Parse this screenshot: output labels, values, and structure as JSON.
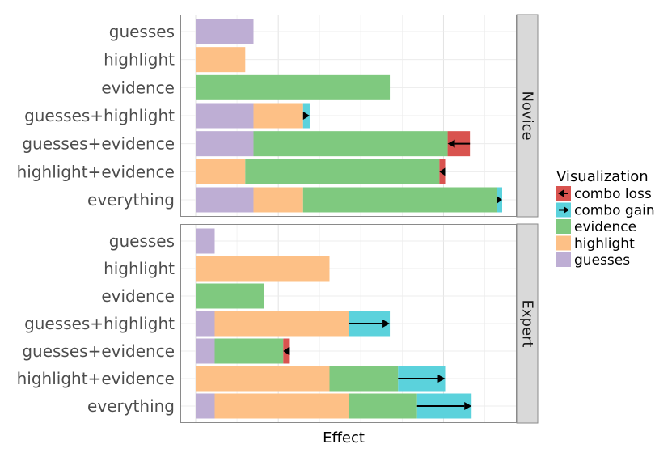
{
  "chart_data": {
    "type": "bar",
    "orientation": "horizontal",
    "stacked": true,
    "xlabel": "Effect",
    "ylabel": "",
    "x_tick_labels_shown": false,
    "grid": true,
    "xlim": [
      0,
      4.2
    ],
    "categories": [
      "guesses",
      "highlight",
      "evidence",
      "guesses+highlight",
      "guesses+evidence",
      "highlight+evidence",
      "everything"
    ],
    "facets": [
      {
        "label": "Novice",
        "rows": [
          {
            "category": "guesses",
            "segments": [
              {
                "fill": "guesses",
                "value": 0.7
              }
            ]
          },
          {
            "category": "highlight",
            "segments": [
              {
                "fill": "highlight",
                "value": 0.6
              }
            ]
          },
          {
            "category": "evidence",
            "segments": [
              {
                "fill": "evidence",
                "value": 2.35
              }
            ]
          },
          {
            "category": "guesses+highlight",
            "segments": [
              {
                "fill": "guesses",
                "value": 0.7
              },
              {
                "fill": "highlight",
                "value": 0.6
              },
              {
                "fill": "combo gain",
                "value": 0.08
              }
            ]
          },
          {
            "category": "guesses+evidence",
            "segments": [
              {
                "fill": "guesses",
                "value": 0.7
              },
              {
                "fill": "evidence",
                "value": 2.35
              }
            ],
            "combo_loss": 0.27
          },
          {
            "category": "highlight+evidence",
            "segments": [
              {
                "fill": "highlight",
                "value": 0.6
              },
              {
                "fill": "evidence",
                "value": 2.35
              }
            ],
            "combo_loss": 0.07
          },
          {
            "category": "everything",
            "segments": [
              {
                "fill": "guesses",
                "value": 0.7
              },
              {
                "fill": "highlight",
                "value": 0.6
              },
              {
                "fill": "evidence",
                "value": 2.35
              },
              {
                "fill": "combo gain",
                "value": 0.06
              }
            ]
          }
        ]
      },
      {
        "label": "Expert",
        "rows": [
          {
            "category": "guesses",
            "segments": [
              {
                "fill": "guesses",
                "value": 0.23
              }
            ]
          },
          {
            "category": "highlight",
            "segments": [
              {
                "fill": "highlight",
                "value": 1.62
              }
            ]
          },
          {
            "category": "evidence",
            "segments": [
              {
                "fill": "evidence",
                "value": 0.83
              }
            ]
          },
          {
            "category": "guesses+highlight",
            "segments": [
              {
                "fill": "guesses",
                "value": 0.23
              },
              {
                "fill": "highlight",
                "value": 1.62
              },
              {
                "fill": "combo gain",
                "value": 0.5
              }
            ]
          },
          {
            "category": "guesses+evidence",
            "segments": [
              {
                "fill": "guesses",
                "value": 0.23
              },
              {
                "fill": "evidence",
                "value": 0.83
              }
            ],
            "combo_loss": 0.07
          },
          {
            "category": "highlight+evidence",
            "segments": [
              {
                "fill": "highlight",
                "value": 1.62
              },
              {
                "fill": "evidence",
                "value": 0.83
              },
              {
                "fill": "combo gain",
                "value": 0.57
              }
            ]
          },
          {
            "category": "everything",
            "segments": [
              {
                "fill": "guesses",
                "value": 0.23
              },
              {
                "fill": "highlight",
                "value": 1.62
              },
              {
                "fill": "evidence",
                "value": 0.83
              },
              {
                "fill": "combo gain",
                "value": 0.66
              }
            ]
          }
        ]
      }
    ],
    "legend": {
      "title": "Visualization",
      "placement": "right",
      "items": [
        {
          "key": "combo loss",
          "label": "combo loss",
          "color": "#d9534f",
          "arrow": "left"
        },
        {
          "key": "combo gain",
          "label": "combo gain",
          "color": "#5bd2dc",
          "arrow": "right"
        },
        {
          "key": "evidence",
          "label": "evidence",
          "color": "#7fc97f",
          "arrow": "none"
        },
        {
          "key": "highlight",
          "label": "highlight",
          "color": "#fdc086",
          "arrow": "none"
        },
        {
          "key": "guesses",
          "label": "guesses",
          "color": "#beaed4",
          "arrow": "none"
        }
      ]
    },
    "colors": {
      "guesses": "#beaed4",
      "highlight": "#fdc086",
      "evidence": "#7fc97f",
      "combo gain": "#5bd2dc",
      "combo loss": "#d9534f"
    }
  }
}
